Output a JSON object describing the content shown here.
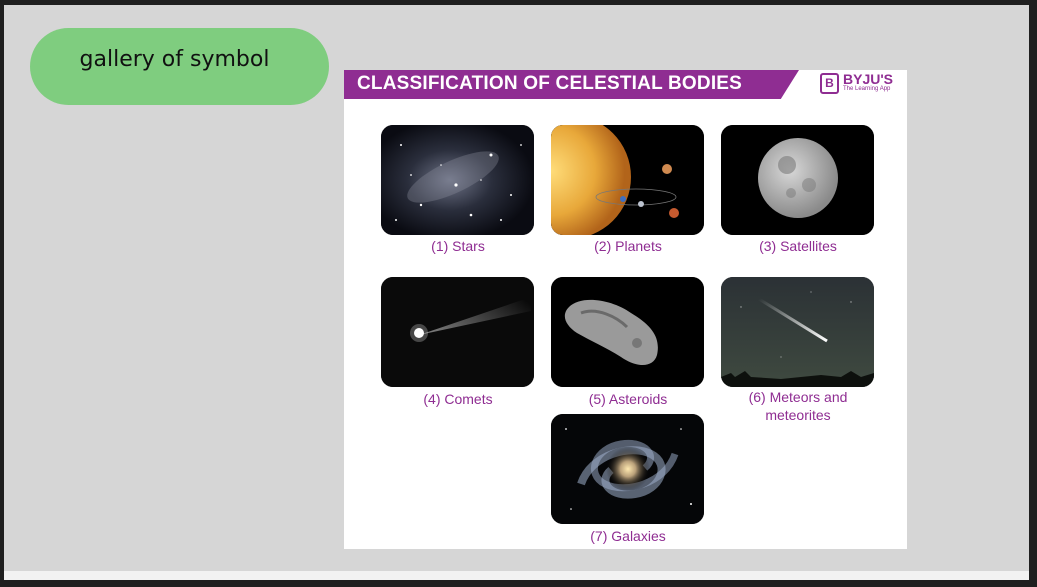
{
  "pill": {
    "label": "gallery of symbol"
  },
  "poster": {
    "title": "CLASSIFICATION OF CELESTIAL BODIES",
    "brand": {
      "name": "BYJU'S",
      "tagline": "The Learning App",
      "icon_letter": "B"
    },
    "items": [
      {
        "caption": "(1) Stars"
      },
      {
        "caption": "(2) Planets"
      },
      {
        "caption": "(3) Satellites"
      },
      {
        "caption": "(4) Comets"
      },
      {
        "caption": "(5) Asteroids"
      },
      {
        "caption_line1": "(6) Meteors and",
        "caption_line2": "meteorites"
      },
      {
        "caption": "(7) Galaxies"
      }
    ]
  },
  "colors": {
    "accent": "#8f2d92",
    "pill": "#7fcd7f",
    "slide_bg": "#d6d6d6"
  }
}
